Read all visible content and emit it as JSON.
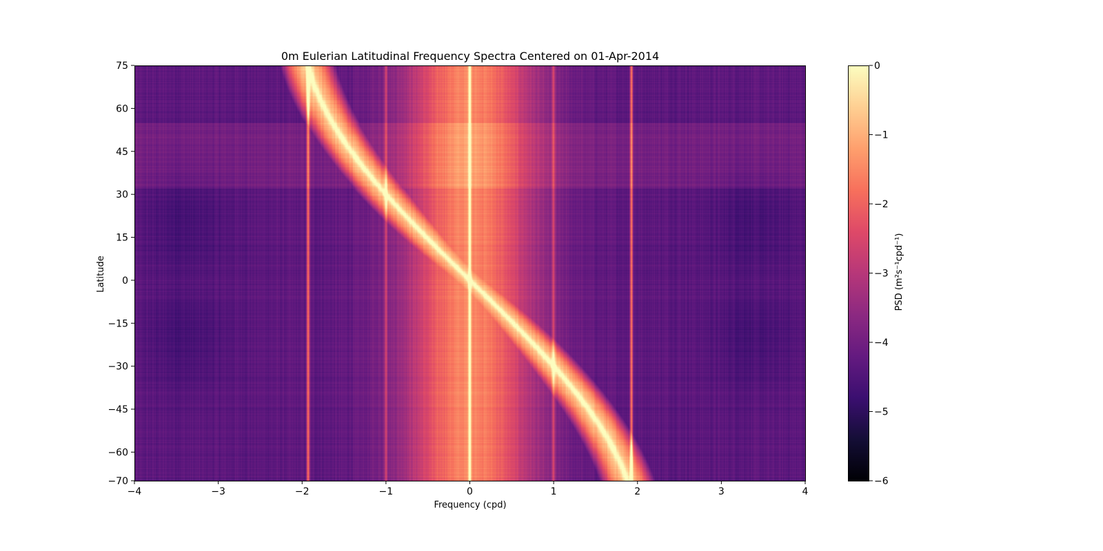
{
  "chart_data": {
    "type": "heatmap",
    "title": "0m Eulerian Latitudinal Frequency Spectra Centered on 01-Apr-2014",
    "xlabel": "Frequency (cpd)",
    "ylabel": "Latitude",
    "xlim": [
      -4,
      4
    ],
    "ylim": [
      -70,
      75
    ],
    "x_ticks": [
      -4,
      -3,
      -2,
      -1,
      0,
      1,
      2,
      3,
      4
    ],
    "x_tick_labels": [
      "−4",
      "−3",
      "−2",
      "−1",
      "0",
      "1",
      "2",
      "3",
      "4"
    ],
    "y_ticks": [
      75,
      60,
      45,
      30,
      15,
      0,
      -15,
      -30,
      -45,
      -60,
      -70
    ],
    "y_tick_labels": [
      "75",
      "60",
      "45",
      "30",
      "15",
      "0",
      "−15",
      "−30",
      "−45",
      "−60",
      "−70"
    ],
    "colormap": "magma",
    "colorbar": {
      "label": "PSD (m²s⁻¹cpd⁻¹)",
      "range": [
        -6,
        0
      ],
      "ticks": [
        0,
        -1,
        -2,
        -3,
        -4,
        -5,
        -6
      ],
      "tick_labels": [
        "0",
        "−1",
        "−2",
        "−3",
        "−4",
        "−5",
        "−6"
      ]
    },
    "features": {
      "background_log10_psd": -4.3,
      "center_band_log10_psd": -1.6,
      "tidal_line_frequencies_cpd": [
        -1.93,
        -1.0,
        0.0,
        1.0,
        1.93
      ],
      "inertial_ridge": {
        "description": "f = -2 sin(latitude)",
        "peak_log10_psd": -0.7
      }
    }
  }
}
